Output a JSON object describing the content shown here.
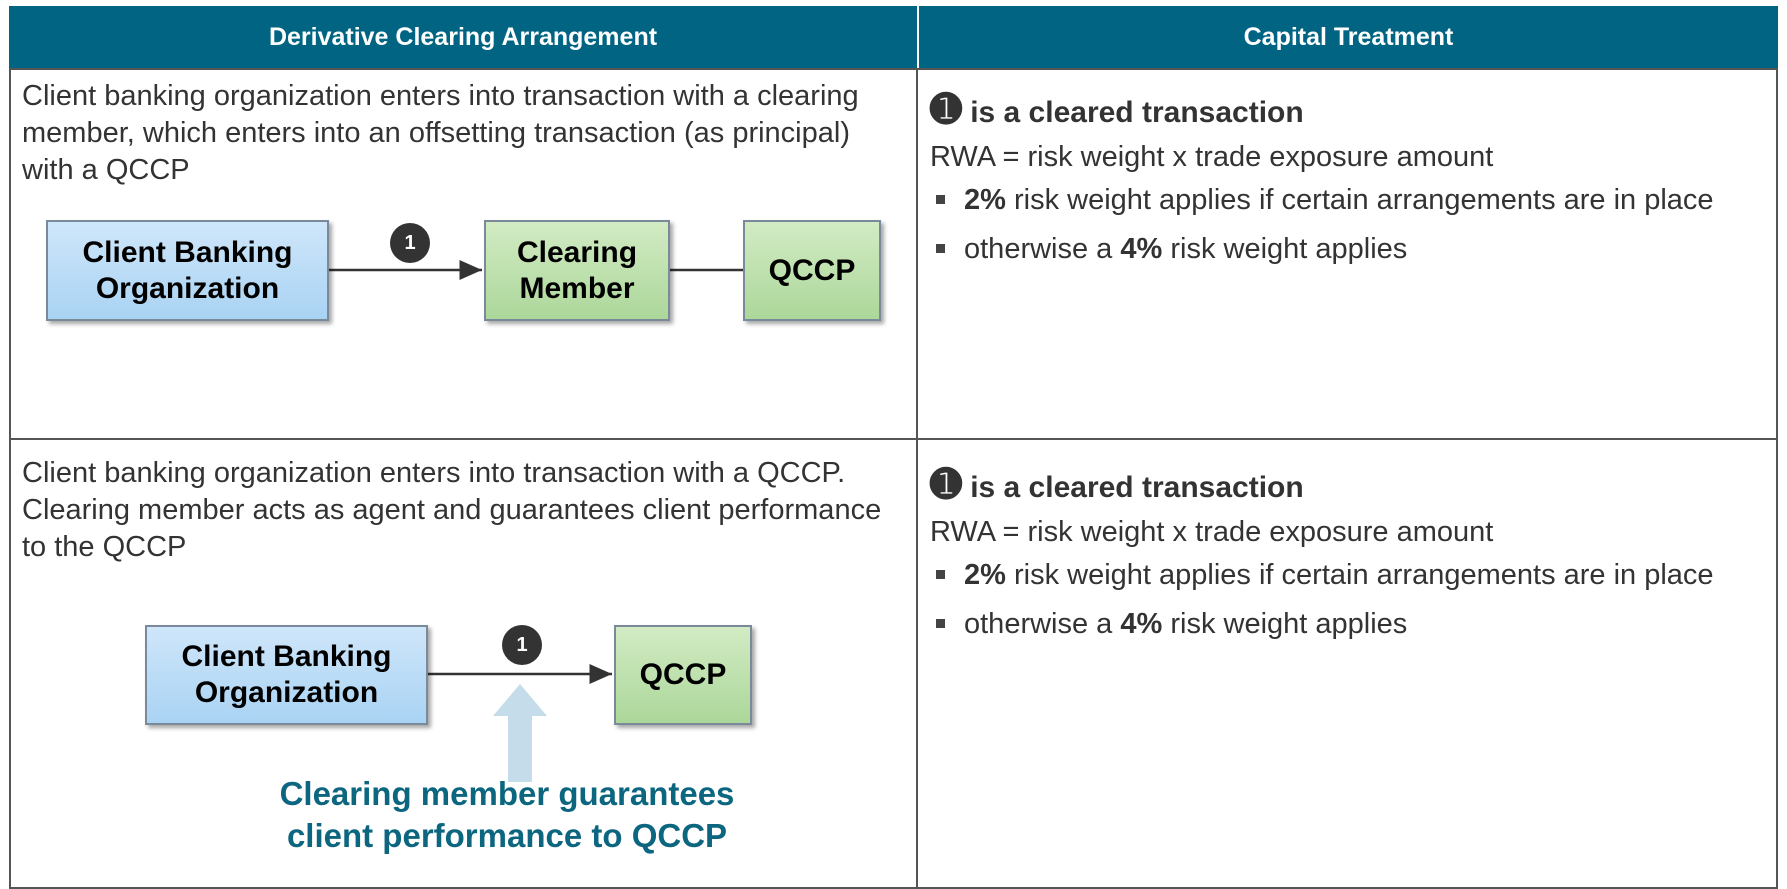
{
  "header": {
    "columns": [
      "Derivative Clearing Arrangement",
      "Capital Treatment"
    ]
  },
  "rows": [
    {
      "description": "Client banking organization enters into transaction with a clearing member, which enters into an offsetting transaction (as principal) with a QCCP",
      "nodes": [
        {
          "label": "Client Banking Organization"
        },
        {
          "label": "Clearing Member"
        },
        {
          "label": "QCCP"
        }
      ],
      "badge": "1",
      "treatment": {
        "marker": "➊",
        "heading": "is a cleared transaction",
        "formula": "RWA = risk weight x trade exposure amount",
        "bullets": [
          {
            "bold": "2%",
            "post": " risk weight applies if certain arrangements are in place"
          },
          {
            "pre": "otherwise a ",
            "bold": "4%",
            "post": " risk weight applies"
          }
        ]
      }
    },
    {
      "description": "Client banking organization enters into transaction with a QCCP.  Clearing member acts as agent and guarantees client performance to the QCCP",
      "nodes": [
        {
          "label": "Client Banking Organization"
        },
        {
          "label": "QCCP"
        }
      ],
      "badge": "1",
      "annotation": "Clearing member guarantees client performance to QCCP",
      "treatment": {
        "marker": "➊",
        "heading": "is a cleared transaction",
        "formula": "RWA = risk weight x trade exposure amount",
        "bullets": [
          {
            "bold": "2%",
            "post": " risk weight applies if certain arrangements are in place"
          },
          {
            "pre": "otherwise a ",
            "bold": "4%",
            "post": " risk weight applies"
          }
        ]
      }
    }
  ]
}
